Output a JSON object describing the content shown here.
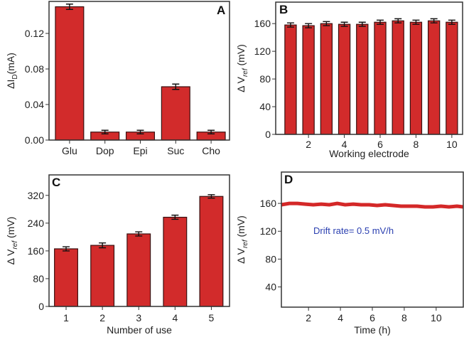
{
  "colors": {
    "bar": "#d22b2b",
    "bar_edge": "#3a1010",
    "line": "#d42828",
    "annotation": "#2a3fb0",
    "axis": "#333333"
  },
  "chart_data": [
    {
      "type": "bar",
      "panel_label": "A",
      "categories": [
        "Glu",
        "Dop",
        "Epi",
        "Suc",
        "Cho"
      ],
      "values": [
        0.15,
        0.009,
        0.009,
        0.06,
        0.009
      ],
      "errors": [
        0.003,
        0.002,
        0.002,
        0.003,
        0.002
      ],
      "ylabel": {
        "main": "ΔI",
        "sub": "D",
        "unit": "(mA)"
      },
      "xlabel": "",
      "yticks": [
        {
          "v": 0,
          "label": "0.00"
        },
        {
          "v": 0.04,
          "label": "0.04"
        },
        {
          "v": 0.08,
          "label": "0.08"
        },
        {
          "v": 0.12,
          "label": "0.12"
        }
      ],
      "ylim": [
        0,
        0.156
      ],
      "xlim": [
        0.42,
        5.52
      ]
    },
    {
      "type": "bar",
      "panel_label": "B",
      "x": [
        1,
        2,
        3,
        4,
        5,
        6,
        7,
        8,
        9,
        10
      ],
      "values": [
        158,
        157,
        160,
        159,
        159,
        162,
        164,
        162,
        164,
        162
      ],
      "errors": [
        3,
        3,
        3,
        3,
        3,
        3,
        3,
        3,
        3,
        3
      ],
      "ylabel": {
        "main": "Δ V",
        "sub": "ref",
        "unit": " (mV)"
      },
      "xlabel": "Working electrode",
      "xticks": [
        {
          "v": 2,
          "label": "2"
        },
        {
          "v": 4,
          "label": "4"
        },
        {
          "v": 6,
          "label": "6"
        },
        {
          "v": 8,
          "label": "8"
        },
        {
          "v": 10,
          "label": "10"
        }
      ],
      "yticks": [
        {
          "v": 0,
          "label": "0"
        },
        {
          "v": 40,
          "label": "40"
        },
        {
          "v": 80,
          "label": "80"
        },
        {
          "v": 120,
          "label": "120"
        },
        {
          "v": 160,
          "label": "160"
        }
      ],
      "ylim": [
        0,
        191
      ],
      "xlim": [
        0.17,
        10.6
      ]
    },
    {
      "type": "bar",
      "panel_label": "C",
      "x": [
        1,
        2,
        3,
        4,
        5
      ],
      "values": [
        166,
        176,
        209,
        257,
        317
      ],
      "errors": [
        6,
        7,
        6,
        6,
        5
      ],
      "ylabel": {
        "main": "Δ V",
        "sub": "ref",
        "unit": " (mV)"
      },
      "xlabel": "Number of use",
      "xticks": [
        {
          "v": 1,
          "label": "1"
        },
        {
          "v": 2,
          "label": "2"
        },
        {
          "v": 3,
          "label": "3"
        },
        {
          "v": 4,
          "label": "4"
        },
        {
          "v": 5,
          "label": "5"
        }
      ],
      "yticks": [
        {
          "v": 0,
          "label": "0"
        },
        {
          "v": 80,
          "label": "80"
        },
        {
          "v": 160,
          "label": "160"
        },
        {
          "v": 240,
          "label": "240"
        },
        {
          "v": 320,
          "label": "320"
        }
      ],
      "ylim": [
        0,
        379
      ],
      "xlim": [
        0.53,
        5.5
      ]
    },
    {
      "type": "line",
      "panel_label": "D",
      "x": [
        0.3,
        0.8,
        1.3,
        1.8,
        2.3,
        2.8,
        3.3,
        3.8,
        4.3,
        4.8,
        5.3,
        5.8,
        6.3,
        6.8,
        7.3,
        7.8,
        8.3,
        8.8,
        9.3,
        9.8,
        10.3,
        10.8,
        11.3,
        11.7
      ],
      "y": [
        158,
        160,
        160,
        159,
        158,
        159,
        158,
        160,
        158,
        159,
        158,
        158,
        157,
        158,
        157,
        156,
        156,
        156,
        155,
        155,
        156,
        155,
        156,
        155
      ],
      "annotation": "Drift rate= 0.5 mV/h",
      "ylabel": {
        "main": "Δ V",
        "sub": "ref",
        "unit": " (mV)"
      },
      "xlabel": "Time (h)",
      "xticks": [
        {
          "v": 2,
          "label": "2"
        },
        {
          "v": 4,
          "label": "4"
        },
        {
          "v": 6,
          "label": "6"
        },
        {
          "v": 8,
          "label": "8"
        },
        {
          "v": 10,
          "label": "10"
        }
      ],
      "yticks": [
        {
          "v": 40,
          "label": "40"
        },
        {
          "v": 80,
          "label": "80"
        },
        {
          "v": 120,
          "label": "120"
        },
        {
          "v": 160,
          "label": "160"
        }
      ],
      "ylim": [
        11,
        205
      ],
      "xlim": [
        0.3,
        11.7
      ]
    }
  ]
}
